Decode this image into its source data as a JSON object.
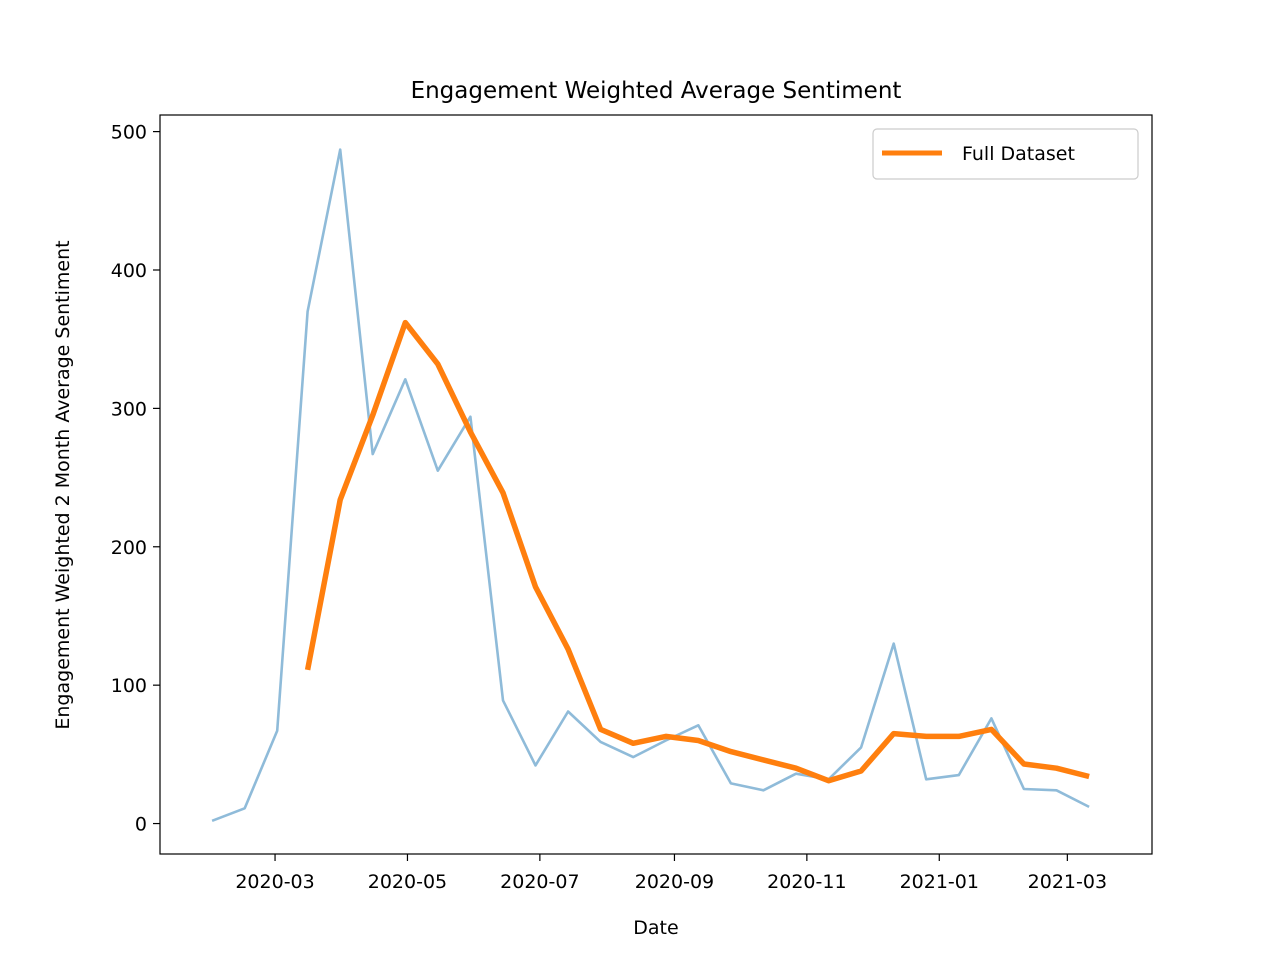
{
  "chart_data": {
    "type": "line",
    "title": "Engagement Weighted Average Sentiment",
    "xlabel": "Date",
    "ylabel": "Engagement Weighted 2 Month Average Sentiment",
    "xlim": [
      "2020-01-08",
      "2021-04-09"
    ],
    "ylim": [
      -22,
      512
    ],
    "x_ticks": [
      "2020-03",
      "2020-05",
      "2020-07",
      "2020-09",
      "2020-11",
      "2021-01",
      "2021-03"
    ],
    "y_ticks": [
      0,
      100,
      200,
      300,
      400,
      500
    ],
    "grid": false,
    "legend_position": "top-right",
    "series": [
      {
        "name": "",
        "color": "#1f77b4",
        "alpha": 0.5,
        "x": [
          "2020-02-01",
          "2020-02-16",
          "2020-03-02",
          "2020-03-16",
          "2020-03-31",
          "2020-04-15",
          "2020-04-30",
          "2020-05-15",
          "2020-05-30",
          "2020-06-14",
          "2020-06-29",
          "2020-07-14",
          "2020-07-29",
          "2020-08-13",
          "2020-08-28",
          "2020-09-12",
          "2020-09-27",
          "2020-10-12",
          "2020-10-27",
          "2020-11-11",
          "2020-11-26",
          "2020-12-11",
          "2020-12-26",
          "2021-01-10",
          "2021-01-25",
          "2021-02-09",
          "2021-02-24",
          "2021-03-11"
        ],
        "values": [
          2,
          11,
          67,
          370,
          487,
          267,
          321,
          255,
          294,
          89,
          42,
          81,
          59,
          48,
          60,
          71,
          29,
          24,
          36,
          32,
          55,
          130,
          32,
          35,
          76,
          25,
          24,
          12
        ]
      },
      {
        "name": "Full Dataset",
        "color": "#ff7f0e",
        "alpha": 1,
        "x": [
          "2020-03-16",
          "2020-03-31",
          "2020-04-15",
          "2020-04-30",
          "2020-05-15",
          "2020-05-30",
          "2020-06-14",
          "2020-06-29",
          "2020-07-14",
          "2020-07-29",
          "2020-08-13",
          "2020-08-28",
          "2020-09-12",
          "2020-09-27",
          "2020-10-12",
          "2020-10-27",
          "2020-11-11",
          "2020-11-26",
          "2020-12-11",
          "2020-12-26",
          "2021-01-10",
          "2021-01-25",
          "2021-02-09",
          "2021-02-24",
          "2021-03-11"
        ],
        "values": [
          111,
          234,
          295,
          362,
          332,
          283,
          239,
          171,
          126,
          68,
          58,
          63,
          60,
          52,
          46,
          40,
          31,
          38,
          65,
          63,
          63,
          68,
          43,
          40,
          34
        ]
      }
    ]
  }
}
